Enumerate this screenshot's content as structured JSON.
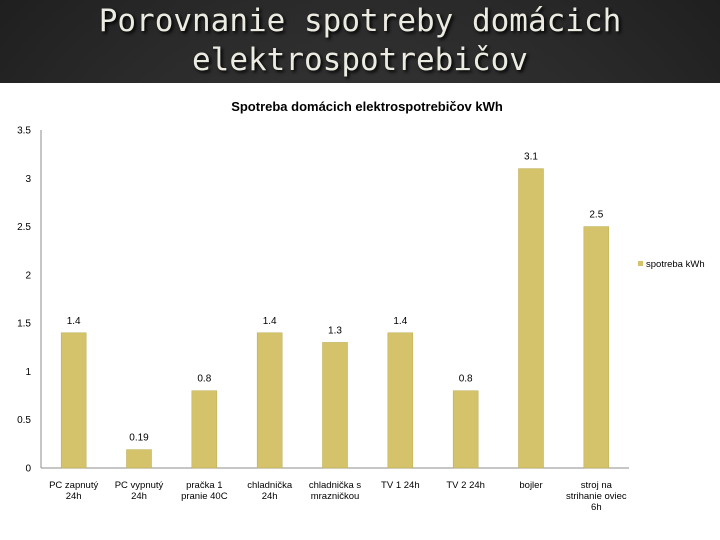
{
  "slide": {
    "title_line1": "Porovnanie spotreby domácich",
    "title_line2": "elektrospotrebičov"
  },
  "chart_data": {
    "type": "bar",
    "title": "Spotreba domácich elektrospotrebičov kWh",
    "categories": [
      [
        "PC zapnutý",
        "24h"
      ],
      [
        "PC vypnutý",
        "24h"
      ],
      [
        "pračka 1",
        "pranie 40C"
      ],
      [
        "chladnička",
        "24h"
      ],
      [
        "chladnička s",
        "mrazničkou"
      ],
      [
        "TV 1 24h"
      ],
      [
        "TV 2 24h"
      ],
      [
        "bojler"
      ],
      [
        "stroj na",
        "strihanie oviec",
        "6h"
      ]
    ],
    "series": [
      {
        "name": "spotreba kWh",
        "values": [
          1.4,
          0.19,
          0.8,
          1.4,
          1.3,
          1.4,
          0.8,
          3.1,
          2.5
        ],
        "value_labels": [
          "1.4",
          "0.19",
          "0.8",
          "1.4",
          "1.3",
          "1.4",
          "0.8",
          "3.1",
          "2.5"
        ]
      }
    ],
    "yticks": [
      "0",
      "0.5",
      "1",
      "1.5",
      "2",
      "2.5",
      "3",
      "3.5"
    ],
    "ylim": [
      0,
      3.5
    ],
    "grid": false,
    "legend": "right",
    "colors": {
      "bar": "#d4c36a",
      "bar_stroke": "#b9a94f",
      "plot_bg": "#ffffff",
      "axis": "#8c8c8c"
    }
  }
}
